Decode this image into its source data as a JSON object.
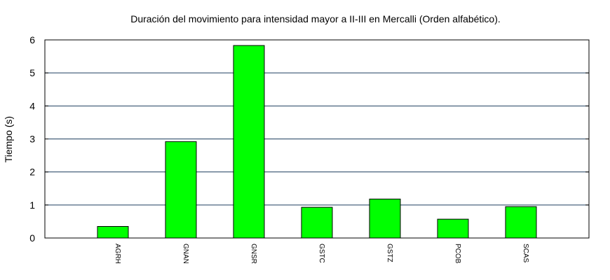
{
  "chart_data": {
    "type": "bar",
    "title": "Duración del movimiento para intensidad mayor a II-III en Mercalli (Orden alfabético).",
    "xlabel": "",
    "ylabel": "Tiempo (s)",
    "categories": [
      "AGRH",
      "GNAN",
      "GNSR",
      "GSTC",
      "GSTZ",
      "PCOB",
      "SCAS"
    ],
    "values": [
      0.35,
      2.92,
      5.83,
      0.93,
      1.18,
      0.57,
      0.95
    ],
    "ylim": [
      0,
      6
    ],
    "yticks": [
      0,
      1,
      2,
      3,
      4,
      5,
      6
    ],
    "grid": true,
    "legend": "none",
    "colors": {
      "bar": "#00ff00",
      "bar_edge": "#000000",
      "grid": "#1f3f5f"
    }
  }
}
